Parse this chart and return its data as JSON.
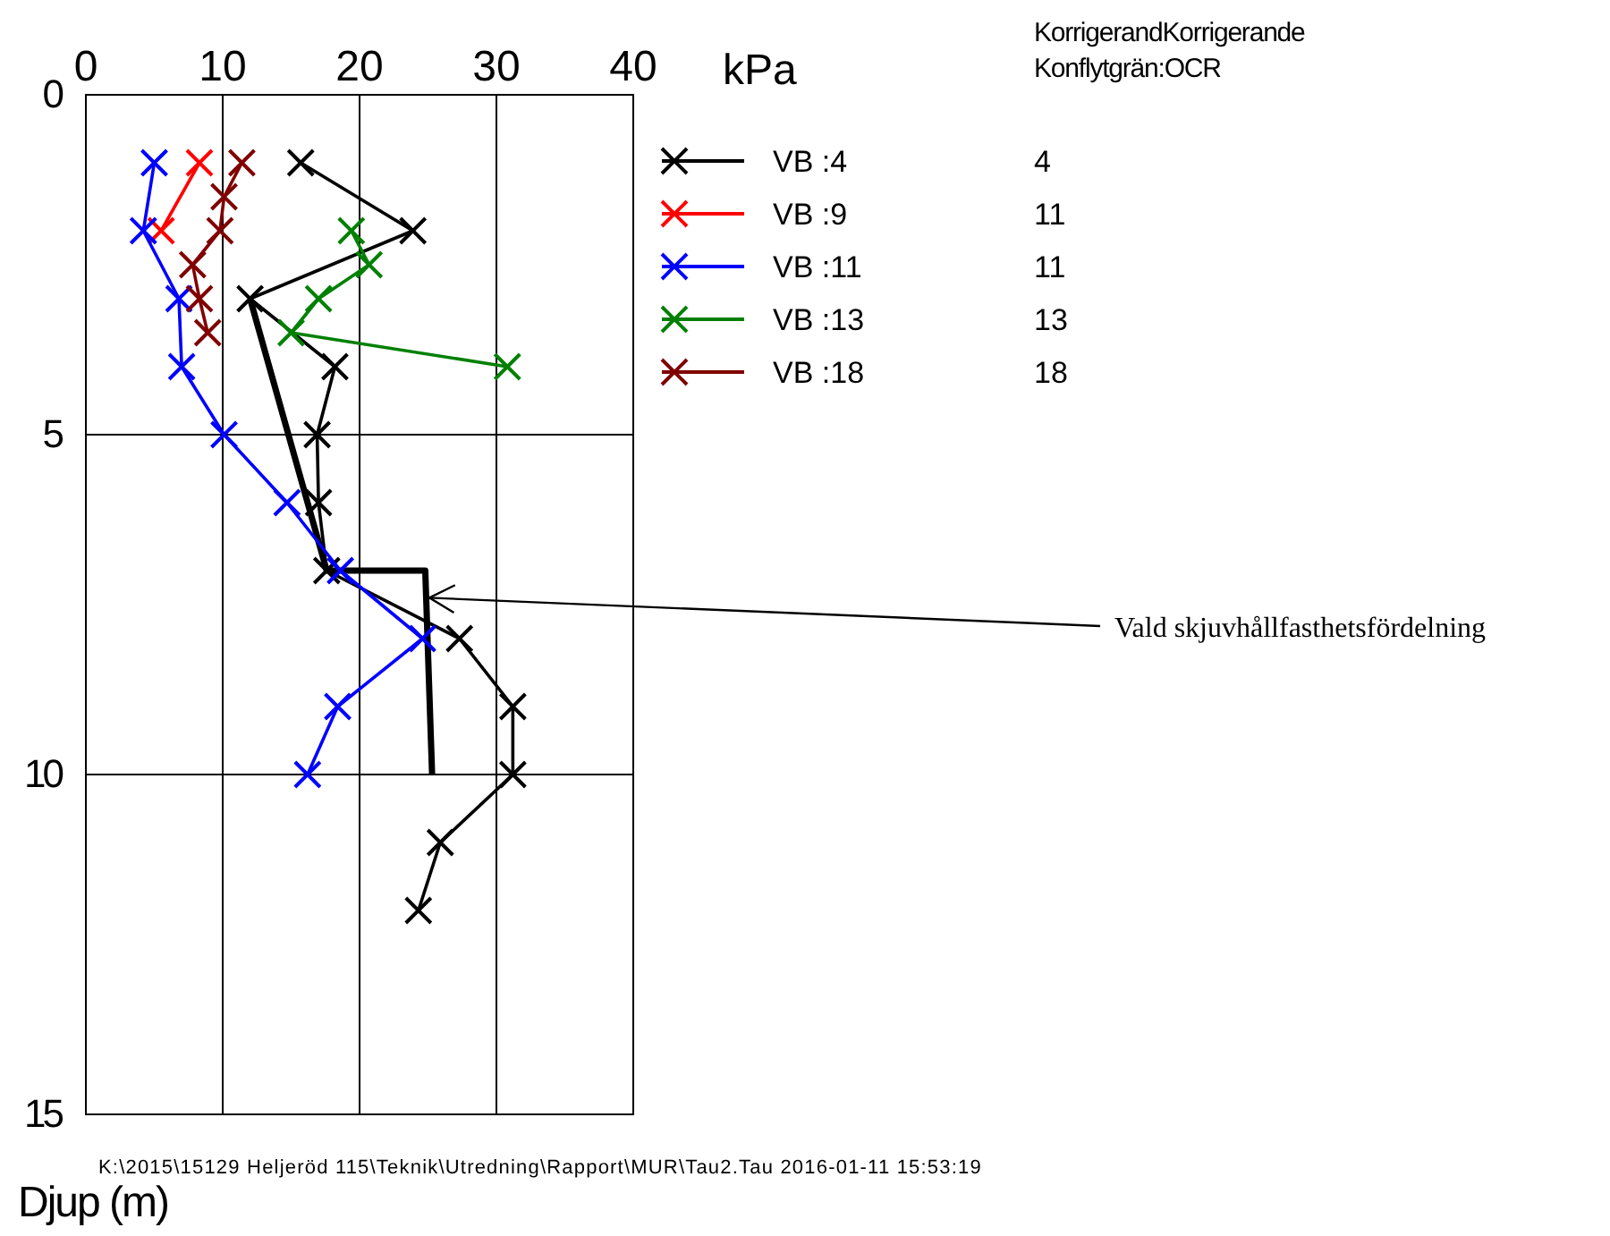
{
  "chart_data": {
    "type": "line",
    "xlabel": "kPa",
    "ylabel": "Djup (m)",
    "xlim": [
      0,
      40
    ],
    "xticks": [
      0,
      10,
      20,
      30,
      40
    ],
    "ylim": [
      15,
      0
    ],
    "yticks": [
      0,
      5,
      10,
      15
    ],
    "grid": true,
    "legend": "right",
    "marker": "cross",
    "series": [
      {
        "name": "VB :4",
        "color": "#000000",
        "x": [
          15.7,
          23.9,
          12,
          18.2,
          16.9,
          17,
          17.6,
          27.3,
          31.2,
          31.2,
          25.9,
          24.3
        ],
        "values": [
          1,
          2,
          3,
          4,
          5,
          6,
          7,
          8,
          9,
          10,
          11,
          12
        ]
      },
      {
        "name": "VB :9",
        "color": "#ff0000",
        "x": [
          8.3,
          5.5
        ],
        "values": [
          1,
          2
        ]
      },
      {
        "name": "VB :11",
        "color": "#0000ff",
        "x": [
          5,
          4.2,
          6.8,
          7,
          10.1,
          14.7,
          18.6,
          24.6,
          18.4,
          16.2
        ],
        "values": [
          1,
          2,
          3,
          4,
          5,
          6,
          7,
          8,
          9,
          10
        ]
      },
      {
        "name": "VB :13",
        "color": "#008000",
        "x": [
          19.4,
          20.7,
          17,
          15,
          30.8
        ],
        "values": [
          2,
          2.5,
          3,
          3.5,
          4
        ]
      },
      {
        "name": "VB :18",
        "color": "#800000",
        "x": [
          11.4,
          10.1,
          9.8,
          7.8,
          8.3,
          8.9
        ],
        "values": [
          1,
          1.5,
          2,
          2.5,
          3,
          3.5
        ]
      },
      {
        "color": "#000000",
        "marker": "none",
        "x": [
          12,
          17.6,
          24.8,
          25.3
        ],
        "values": [
          3,
          7,
          7,
          10
        ]
      }
    ],
    "annotations": [
      {
        "text": "Vald skjuvhållfasthetsfördelning",
        "x": 25.1,
        "y": 7.4
      },
      "KorrigerandKorrigerande",
      "Konflytgrän:OCR",
      "4",
      "11",
      "11",
      "13",
      "18",
      "K:\\2015\\15129 Heljeröd 115\\Teknik\\Utredning\\Rapport\\MUR\\Tau2.Tau 2016-01-11 15:53:19"
    ]
  }
}
